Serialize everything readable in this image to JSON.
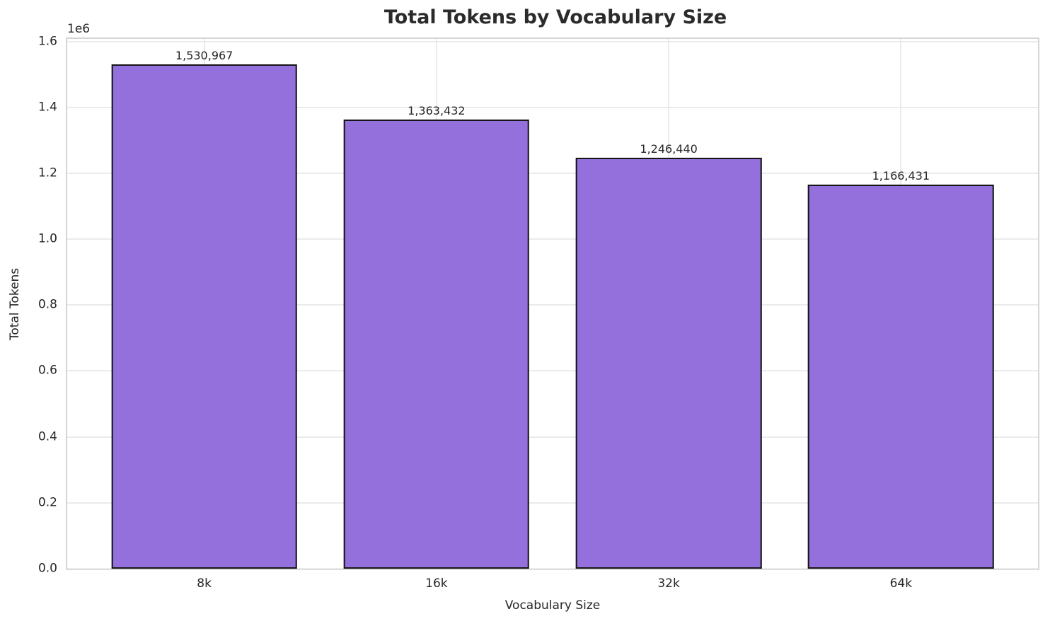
{
  "chart_data": {
    "type": "bar",
    "title": "Total Tokens by Vocabulary Size",
    "xlabel": "Vocabulary Size",
    "ylabel": "Total Tokens",
    "y_offset_text": "1e6",
    "categories": [
      "8k",
      "16k",
      "32k",
      "64k"
    ],
    "values": [
      1530967,
      1363432,
      1246440,
      1166431
    ],
    "bar_value_labels": [
      "1,530,967",
      "1,363,432",
      "1,246,440",
      "1,166,431"
    ],
    "ytick_values": [
      0,
      200000,
      400000,
      600000,
      800000,
      1000000,
      1200000,
      1400000,
      1600000
    ],
    "ytick_labels": [
      "0.0",
      "0.2",
      "0.4",
      "0.6",
      "0.8",
      "1.0",
      "1.2",
      "1.4",
      "1.6"
    ],
    "ylim": [
      0,
      1607515
    ],
    "xlim": [
      -0.59,
      3.59
    ],
    "bar_width": 0.8,
    "grid": true,
    "legend": false,
    "colors": {
      "bar_fill": "#9370db",
      "bar_edge": "#151515",
      "grid": "#ebebeb",
      "spine": "#d5d5d5",
      "text": "#262626",
      "title": "#2b2b2b"
    }
  }
}
